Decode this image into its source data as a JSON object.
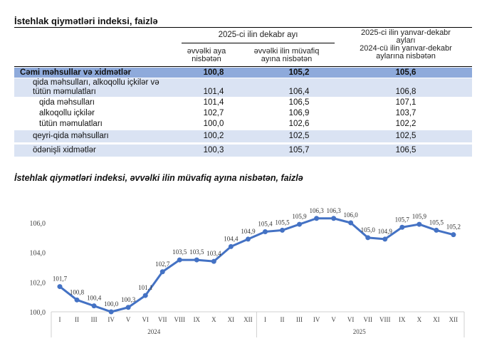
{
  "table": {
    "title": "İstehlak qiymətləri indeksi, faizlə",
    "group_header": "2025-ci ilin dekabr ayı",
    "col1": [
      "əvvəlki aya",
      "nisbətən"
    ],
    "col2": [
      "əvvəlki ilin müvafiq",
      "ayına nisbətən"
    ],
    "col3": [
      "2025-ci ilin yanvar-dekabr",
      "ayları",
      "2024-cü ilin yanvar-dekabr",
      "aylarına nisbətən"
    ],
    "rows": [
      {
        "label": "Cəmi məhsullar və xidmətlər",
        "label2": "",
        "v1": "100,8",
        "v2": "105,2",
        "v3": "105,6"
      },
      {
        "label": "qida məhsulları, alkoqollu içkilər və",
        "label2": "tütün məmulatları",
        "v1": "101,4",
        "v2": "106,4",
        "v3": "106,8"
      },
      {
        "label": "qida məhsulları",
        "label2": "",
        "v1": "101,4",
        "v2": "106,5",
        "v3": "107,1"
      },
      {
        "label": "alkoqollu içkilər",
        "label2": "",
        "v1": "102,7",
        "v2": "106,9",
        "v3": "103,7"
      },
      {
        "label": "tütün məmulatları",
        "label2": "",
        "v1": "100,0",
        "v2": "102,6",
        "v3": "102,2"
      },
      {
        "label": "qeyri-qida məhsulları",
        "label2": "",
        "v1": "100,2",
        "v2": "102,5",
        "v3": "102,5"
      },
      {
        "label": "ödənişli xidmətlər",
        "label2": "",
        "v1": "100,3",
        "v2": "105,7",
        "v3": "106,5"
      }
    ],
    "colors": {
      "total_row": "#8eaadb",
      "light_row": "#dae3f3"
    }
  },
  "chart_data": {
    "type": "line",
    "title": "İstehlak qiymətləri indeksi, əvvəlki ilin müvafiq ayına nisbətən, faizlə",
    "categories": [
      "I",
      "II",
      "III",
      "IV",
      "V",
      "VI",
      "VII",
      "VIII",
      "IX",
      "X",
      "XI",
      "XII",
      "I",
      "II",
      "III",
      "IV",
      "V",
      "VI",
      "VII",
      "VIII",
      "IX",
      "X",
      "XI",
      "XII"
    ],
    "year_groups": [
      {
        "label": "2024",
        "count": 12
      },
      {
        "label": "2025",
        "count": 12
      }
    ],
    "values": [
      101.7,
      100.8,
      100.4,
      100.0,
      100.3,
      101.1,
      102.7,
      103.5,
      103.5,
      103.4,
      104.4,
      104.9,
      105.4,
      105.5,
      105.9,
      106.3,
      106.3,
      106.0,
      105.0,
      104.9,
      105.7,
      105.9,
      105.5,
      105.2
    ],
    "data_labels": [
      "101,7",
      "100,8",
      "100,4",
      "100,0",
      "100,3",
      "101,1",
      "102,7",
      "103,5",
      "103,5",
      "103,4",
      "104,4",
      "104,9",
      "105,4",
      "105,5",
      "105,9",
      "106,3",
      "106,3",
      "106,0",
      "105,0",
      "104,9",
      "105,7",
      "105,9",
      "105,5",
      "105,2"
    ],
    "y_ticks": [
      "100,0",
      "102,0",
      "104,0",
      "106,0"
    ],
    "ylim": [
      100,
      106.8
    ],
    "grid": false,
    "line_color": "#4472c4"
  }
}
